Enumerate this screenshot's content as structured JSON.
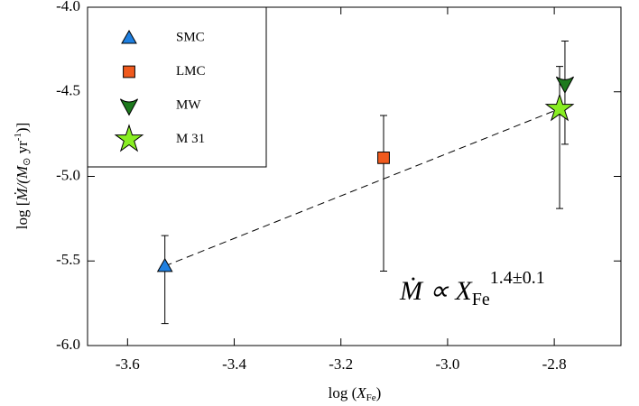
{
  "chart_data": {
    "type": "scatter",
    "x_label": {
      "pre": "log (",
      "var": "X",
      "sub": "Fe",
      "post": ")"
    },
    "y_label": {
      "pre": "log [",
      "var": "Ṁ",
      "mid": "/(M",
      "sun": "⊙",
      "unit": " yr",
      "sup": "-1",
      "post": ")]"
    },
    "annotation": {
      "main": "Ṁ ∝ X",
      "sub": "Fe",
      "sup": "1.4±0.1"
    },
    "xlim": [
      -3.675,
      -2.675
    ],
    "xticks": [
      -3.6,
      -3.4,
      -3.2,
      {
        "value": -3.0,
        "label": "-3.0"
      },
      -2.8
    ],
    "ylim": [
      -6,
      -4
    ],
    "yticks": [
      {
        "value": -6,
        "label": "-6.0"
      },
      -5.5,
      {
        "value": -5,
        "label": "-5.0"
      },
      -4.5,
      {
        "value": -4,
        "label": "-4.0"
      }
    ],
    "series": [
      {
        "name": "SMC",
        "color": "#1e7fe0",
        "marker": "triangle",
        "x": [
          -3.53
        ],
        "values": [
          -5.53
        ],
        "err_minus": [
          0.34
        ],
        "err_plus": [
          0.18
        ]
      },
      {
        "name": "LMC",
        "color": "#f05a1e",
        "marker": "square",
        "x": [
          -3.12
        ],
        "values": [
          -4.89
        ],
        "err_minus": [
          0.67
        ],
        "err_plus": [
          0.25
        ]
      },
      {
        "name": "MW",
        "color": "#1d7a1d",
        "marker": "chevron",
        "x": [
          -2.78
        ],
        "values": [
          -4.45
        ],
        "err_minus": [
          0.36
        ],
        "err_plus": [
          0.25
        ]
      },
      {
        "name": "M 31",
        "color": "#88ee22",
        "marker": "star",
        "x": [
          -2.79
        ],
        "values": [
          -4.6
        ],
        "err_minus": [
          0.59
        ],
        "err_plus": [
          0.25
        ]
      }
    ],
    "fit": {
      "x": [
        -3.53,
        -2.79
      ],
      "values": [
        -5.53,
        -4.6
      ]
    }
  }
}
